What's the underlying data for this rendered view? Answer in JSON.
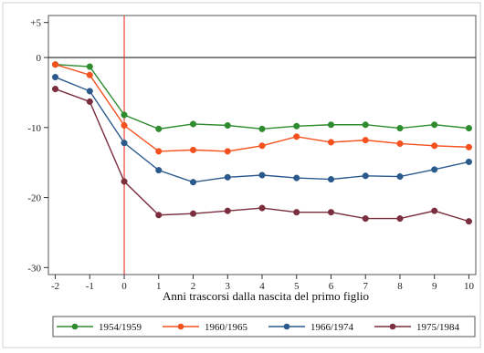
{
  "chart_data": {
    "type": "line",
    "xlabel": "Anni trascorsi dalla nascita del primo figlio",
    "ylabel": "",
    "x": [
      -2,
      -1,
      0,
      1,
      2,
      3,
      4,
      5,
      6,
      7,
      8,
      9,
      10
    ],
    "xlim": [
      -2.2,
      10.2
    ],
    "ylim": [
      -31,
      6
    ],
    "y_ticks": [
      5,
      0,
      -10,
      -20,
      -30
    ],
    "y_tick_labels": [
      "+5",
      "0",
      "-10",
      "-20",
      "-30"
    ],
    "x_tick_labels": [
      "-2",
      "-1",
      "0",
      "1",
      "2",
      "3",
      "4",
      "5",
      "6",
      "7",
      "8",
      "9",
      "10"
    ],
    "reference_line_y": 0,
    "reference_line_x": 0,
    "grid": false,
    "legend_position": "bottom",
    "series": [
      {
        "name": "1954/1959",
        "color": "#2e8b2e",
        "values": [
          -1.0,
          -1.3,
          -8.2,
          -10.2,
          -9.5,
          -9.7,
          -10.2,
          -9.8,
          -9.6,
          -9.6,
          -10.1,
          -9.6,
          -10.1
        ]
      },
      {
        "name": "1960/1965",
        "color": "#f4511e",
        "values": [
          -1.0,
          -2.5,
          -9.7,
          -13.4,
          -13.2,
          -13.4,
          -12.6,
          -11.3,
          -12.1,
          -11.8,
          -12.3,
          -12.6,
          -12.8
        ]
      },
      {
        "name": "1966/1974",
        "color": "#2a5a8c",
        "values": [
          -2.8,
          -4.8,
          -12.2,
          -16.1,
          -17.8,
          -17.1,
          -16.8,
          -17.2,
          -17.4,
          -16.9,
          -17.0,
          -16.0,
          -14.9
        ]
      },
      {
        "name": "1975/1984",
        "color": "#7a2e3e",
        "values": [
          -4.5,
          -6.3,
          -17.7,
          -22.5,
          -22.3,
          -21.9,
          -21.5,
          -22.1,
          -22.1,
          -23.0,
          -23.0,
          -21.9,
          -23.4
        ]
      }
    ]
  }
}
